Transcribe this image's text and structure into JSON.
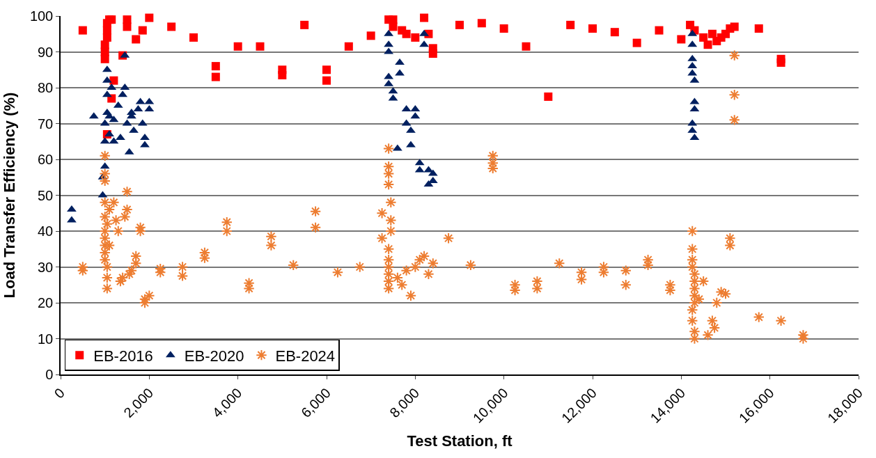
{
  "chart_data": {
    "type": "scatter",
    "xlabel": "Test Station, ft",
    "ylabel": "Load Transfer Efficiency (%)",
    "xlim": [
      0,
      18000
    ],
    "xticks": [
      {
        "value": 0,
        "label": "0"
      },
      {
        "value": 2000,
        "label": "2,000"
      },
      {
        "value": 4000,
        "label": "4,000"
      },
      {
        "value": 6000,
        "label": "6,000"
      },
      {
        "value": 8000,
        "label": "8,000"
      },
      {
        "value": 10000,
        "label": "10,000"
      },
      {
        "value": 12000,
        "label": "12,000"
      },
      {
        "value": 14000,
        "label": "14,000"
      },
      {
        "value": 16000,
        "label": "16,000"
      },
      {
        "value": 18000,
        "label": "18,000"
      }
    ],
    "ylim": [
      0,
      100
    ],
    "yticks": [
      0,
      10,
      20,
      30,
      40,
      50,
      60,
      70,
      80,
      90,
      100
    ],
    "grid": "y",
    "legend": "bottom left",
    "series": [
      {
        "name": "EB-2016",
        "color": "#ff0000",
        "marker": "square",
        "x": [
          500,
          1000,
          1000,
          1000,
          1050,
          1050,
          1050,
          1100,
          1150,
          1200,
          1150,
          1050,
          1400,
          1500,
          1500,
          1700,
          1850,
          2000,
          2500,
          3000,
          3500,
          3500,
          4000,
          4500,
          5000,
          5000,
          5500,
          6000,
          6000,
          6500,
          7000,
          7400,
          7500,
          7500,
          7700,
          7800,
          8000,
          8200,
          8300,
          8400,
          8400,
          9000,
          9500,
          10000,
          10500,
          11000,
          11500,
          12000,
          12500,
          13000,
          13500,
          14000,
          14200,
          14300,
          14500,
          14600,
          14700,
          14800,
          14900,
          15000,
          15100,
          15200,
          15750,
          16250,
          16250
        ],
        "values": [
          96,
          88,
          90,
          92,
          94,
          96,
          98,
          99,
          99,
          82,
          77,
          67,
          89,
          99,
          97,
          93.5,
          96,
          99.5,
          97,
          94,
          86,
          83,
          91.5,
          91.5,
          85,
          83.5,
          97.5,
          85,
          82,
          91.5,
          94.5,
          99,
          99,
          97,
          96,
          95,
          94,
          99.5,
          95,
          91,
          89.5,
          97.5,
          98,
          96.5,
          91.5,
          77.5,
          97.5,
          96.5,
          95.5,
          92.5,
          96,
          93.5,
          97.5,
          96,
          94,
          92,
          95,
          93,
          94,
          95,
          96.5,
          97,
          96.5,
          88,
          87
        ]
      },
      {
        "name": "EB-2020",
        "color": "#002060",
        "marker": "triangle",
        "x": [
          250,
          250,
          750,
          950,
          950,
          1000,
          1000,
          1000,
          1050,
          1050,
          1050,
          1050,
          1100,
          1100,
          1150,
          1200,
          1200,
          1300,
          1350,
          1400,
          1450,
          1450,
          1500,
          1550,
          1600,
          1600,
          1650,
          1750,
          1800,
          1850,
          1900,
          1900,
          2000,
          2000,
          7400,
          7400,
          7400,
          7400,
          7400,
          7500,
          7500,
          7600,
          7650,
          7650,
          7800,
          7800,
          7900,
          7900,
          8000,
          8000,
          8100,
          8100,
          8300,
          8300,
          8400,
          8400,
          8200,
          8200,
          14250,
          14250,
          14250,
          14250,
          14250,
          14300,
          14300,
          14300,
          14250,
          14250,
          14300
        ],
        "values": [
          46,
          43,
          72,
          55,
          50,
          58,
          65,
          70,
          73,
          78,
          82,
          85,
          67,
          72,
          80,
          65,
          71,
          75,
          66,
          78,
          89,
          80,
          70,
          62,
          72,
          73,
          68,
          74,
          76,
          70,
          66,
          64,
          76,
          74,
          95,
          92,
          90,
          83,
          81,
          79,
          77,
          63,
          87,
          84,
          74,
          70,
          64,
          68,
          74,
          72,
          59,
          57,
          57,
          53,
          56,
          54,
          95,
          92,
          95,
          92,
          88,
          86,
          84,
          82,
          76,
          74,
          70,
          68,
          66
        ]
      },
      {
        "name": "EB-2024",
        "color": "#ed7d31",
        "marker": "cross",
        "x": [
          500,
          500,
          1000,
          1000,
          1000,
          1000,
          1000,
          1000,
          1000,
          1000,
          1000,
          1000,
          1050,
          1050,
          1050,
          1050,
          1100,
          1100,
          1200,
          1250,
          1300,
          1350,
          1400,
          1450,
          1500,
          1500,
          1550,
          1600,
          1700,
          1700,
          1800,
          1800,
          1900,
          2000,
          1900,
          2250,
          2250,
          2750,
          2750,
          3250,
          3250,
          3750,
          3750,
          4250,
          4250,
          4750,
          4750,
          5250,
          5750,
          5750,
          6250,
          6750,
          7250,
          7250,
          7400,
          7400,
          7400,
          7400,
          7450,
          7450,
          7450,
          7400,
          7400,
          7400,
          7400,
          7400,
          7400,
          7600,
          7700,
          7800,
          7900,
          8000,
          8100,
          8200,
          8300,
          8400,
          8750,
          9250,
          9750,
          9750,
          9750,
          10250,
          10250,
          10750,
          10750,
          11250,
          11750,
          11750,
          12250,
          12250,
          12750,
          12750,
          13250,
          13250,
          13750,
          13750,
          14250,
          14250,
          14250,
          14250,
          14300,
          14300,
          14300,
          14300,
          14300,
          14250,
          14250,
          14300,
          14300,
          14400,
          14500,
          14600,
          14700,
          14750,
          14800,
          14900,
          15000,
          15100,
          15100,
          15200,
          15200,
          15200,
          15750,
          16250,
          16750,
          16750
        ],
        "values": [
          30,
          29,
          61,
          56,
          54,
          48,
          44,
          40,
          38,
          36,
          34,
          32,
          30,
          42,
          27,
          24,
          46,
          36,
          48,
          43,
          40,
          26,
          27,
          44,
          51,
          46,
          28,
          29,
          33,
          31,
          41,
          40,
          21,
          22,
          20,
          29.5,
          28.5,
          30,
          27.5,
          34,
          32.5,
          42.5,
          40,
          25.5,
          24,
          38.5,
          36,
          30.5,
          45.5,
          41,
          28.5,
          30,
          45,
          38,
          63,
          58,
          56,
          53,
          48,
          43,
          40,
          35,
          32,
          30,
          28,
          26,
          24,
          27,
          25,
          29,
          22,
          30,
          32,
          33,
          28,
          31,
          38,
          30.5,
          61,
          59,
          57.5,
          25,
          23.5,
          26,
          24,
          31,
          28.5,
          26.5,
          30,
          28.5,
          29,
          25,
          32,
          30.5,
          25,
          23.5,
          40,
          35,
          32,
          30,
          28,
          26,
          24,
          22,
          20,
          18,
          15,
          12,
          10,
          21,
          26,
          11,
          15,
          13,
          20,
          23,
          22.5,
          38,
          36,
          89,
          78,
          71,
          16,
          15,
          11,
          10
        ]
      }
    ]
  }
}
